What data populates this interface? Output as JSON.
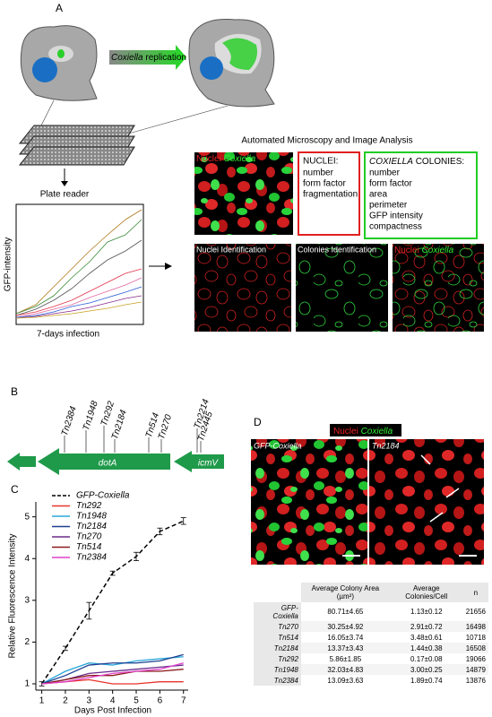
{
  "panel_a": {
    "label": "A",
    "arrow_text": [
      "Coxiella",
      "replication"
    ],
    "plate_reader": "Plate reader",
    "y_label": "GFP-intensity",
    "x_label": "7-days infection",
    "title": "Automated Microscopy and Image Analysis",
    "image_labels": [
      "Nuclei",
      "Coxiella"
    ],
    "nuclei_box": {
      "heading": "NUCLEI:",
      "items": [
        "number",
        "form factor",
        "fragmentation"
      ]
    },
    "colonies_box": {
      "heading_italic": "COXIELLA",
      "heading": "COLONIES:",
      "items": [
        "number",
        "form factor",
        "area",
        "perimeter",
        "GFP intensity",
        "compactness"
      ]
    },
    "panels": [
      "Nuclei Identification",
      "Colonies Identification"
    ],
    "overlay_labels": [
      "Nuclei",
      "Coxiella"
    ]
  },
  "panel_b": {
    "label": "B",
    "insertions": [
      "Tn2384",
      "Tn1948",
      "Tn292",
      "Tn2184",
      "Tn514",
      "Tn270",
      "Tn2214",
      "Tn2445"
    ],
    "genes": [
      "dotA",
      "icmV"
    ]
  },
  "chart_data": {
    "type": "line",
    "label": "C",
    "x_label": "Days Post Infection",
    "y_label": "Relative Fluorescence Intensity",
    "x": [
      1,
      2,
      3,
      4,
      5,
      6,
      7
    ],
    "xlim": [
      0.75,
      7.2
    ],
    "xticks": [
      1,
      2,
      3,
      4,
      5,
      6,
      7
    ],
    "ylim": [
      0.85,
      5.25
    ],
    "yticks": [
      1,
      2,
      3,
      4,
      5
    ],
    "legend": "upper left",
    "series": [
      {
        "name": "GFP-Coxiella",
        "color": "#000000",
        "dashed": true,
        "values": [
          1,
          1.85,
          2.75,
          3.65,
          4.05,
          4.65,
          4.9
        ],
        "errors": [
          0.05,
          0.05,
          0.2,
          0.05,
          0.1,
          0.08,
          0.08
        ]
      },
      {
        "name": "Tn292",
        "color": "#e8332a",
        "values": [
          1,
          1.05,
          1.1,
          1.0,
          1.0,
          1.05,
          1.05
        ]
      },
      {
        "name": "Tn1948",
        "color": "#2aa7d8",
        "values": [
          1,
          1.3,
          1.5,
          1.45,
          1.55,
          1.6,
          1.65
        ]
      },
      {
        "name": "Tn2184",
        "color": "#1d3f8f",
        "values": [
          1,
          1.2,
          1.45,
          1.5,
          1.5,
          1.55,
          1.7
        ]
      },
      {
        "name": "Tn270",
        "color": "#6a2c8a",
        "values": [
          1,
          1.1,
          1.25,
          1.3,
          1.35,
          1.4,
          1.45
        ]
      },
      {
        "name": "Tn514",
        "color": "#8b1a1a",
        "values": [
          1,
          1.1,
          1.2,
          1.2,
          1.3,
          1.3,
          1.35
        ]
      },
      {
        "name": "Tn2384",
        "color": "#e040c8",
        "values": [
          1,
          1.05,
          1.15,
          1.25,
          1.3,
          1.35,
          1.5
        ]
      }
    ]
  },
  "panel_d": {
    "label": "D",
    "legend": [
      "Nuclei",
      "Coxiella"
    ],
    "image_labels": [
      "GFP-Coxiella",
      "Tn2184"
    ],
    "table": {
      "header": [
        "Average Colony Area (µm²)",
        "Average Colonies/Cell",
        "n"
      ],
      "rows": [
        [
          "GFP-Coxiella",
          "80.71±4.65",
          "1.13±0.12",
          "21656"
        ],
        [
          "Tn270",
          "30.25±4.92",
          "2.91±0.72",
          "16498"
        ],
        [
          "Tn514",
          "16.05±3.74",
          "3.48±0.61",
          "10718"
        ],
        [
          "Tn2184",
          "13.37±3.43",
          "1.44±0.38",
          "16508"
        ],
        [
          "Tn292",
          "5.86±1.85",
          "0.17±0.08",
          "19066"
        ],
        [
          "Tn1948",
          "32.03±4.83",
          "3.00±0.25",
          "14879"
        ],
        [
          "Tn2384",
          "13.09±3.63",
          "1.89±0.74",
          "13876"
        ]
      ]
    }
  }
}
